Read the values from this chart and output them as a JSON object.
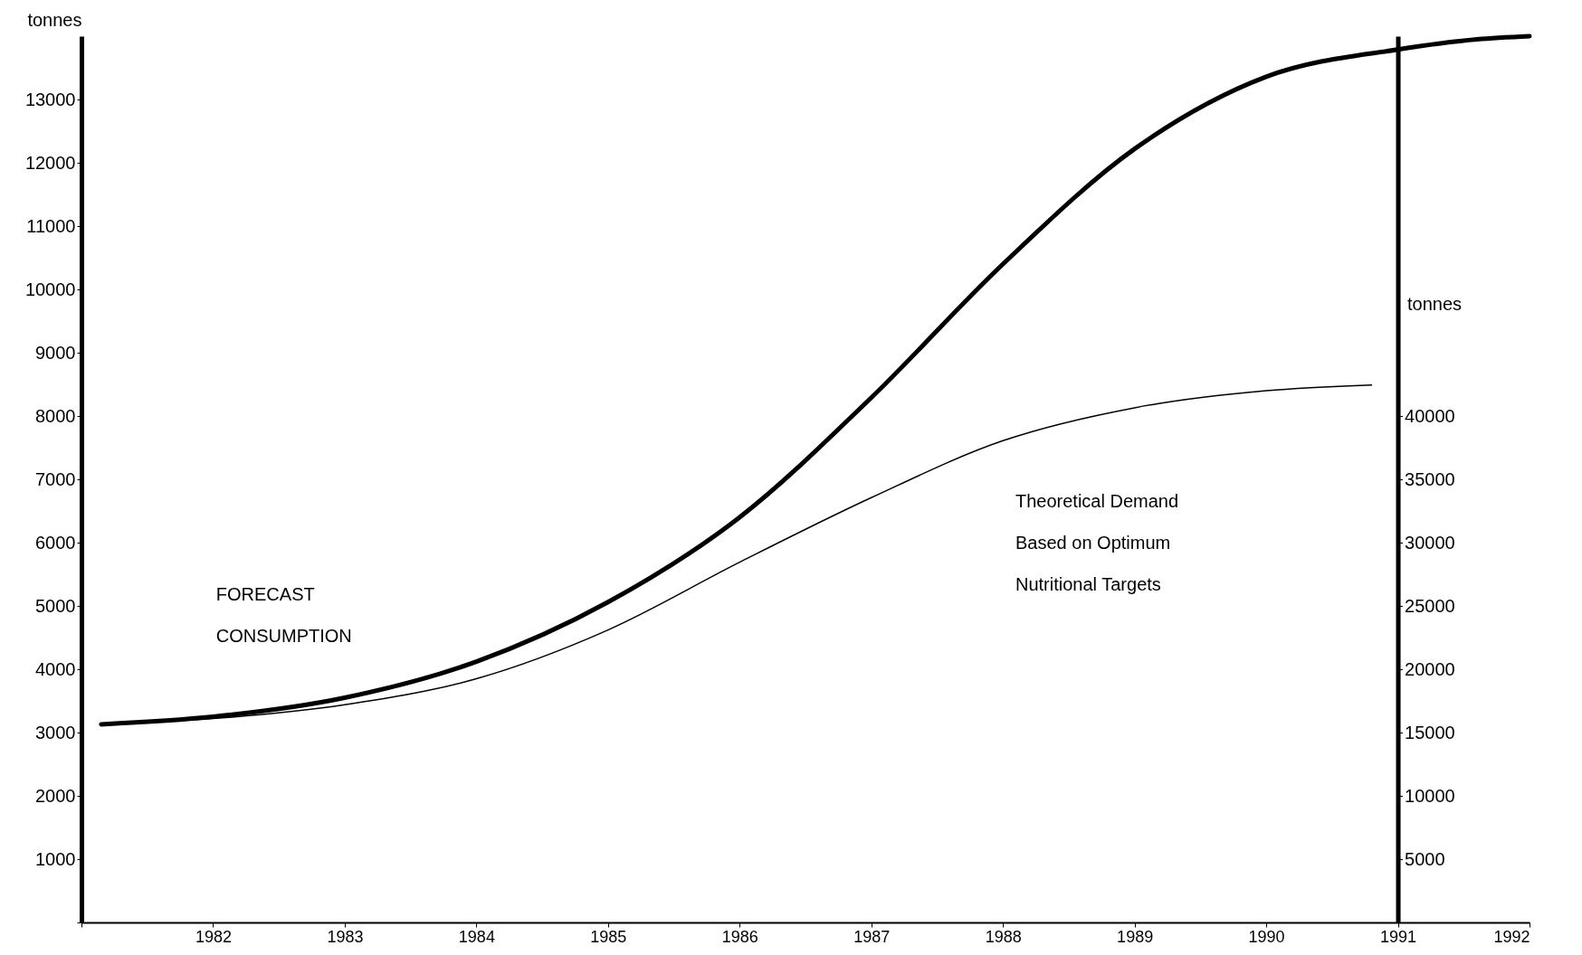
{
  "chart_data": {
    "type": "line",
    "ylabel": "tonnes",
    "y2label": "tonnes",
    "x": [
      1981.15,
      1982,
      1983,
      1984,
      1985,
      1986,
      1987,
      1988,
      1989,
      1990,
      1991,
      1991.6,
      1992
    ],
    "xlim": [
      1981,
      1992
    ],
    "xticks": [
      {
        "value": 1981,
        "label": null
      },
      1982,
      1983,
      1984,
      1985,
      1986,
      1987,
      1988,
      1989,
      1990,
      1991,
      1992
    ],
    "ylim": [
      0,
      14000
    ],
    "yticks": [
      {
        "value": 0,
        "label": null
      },
      1000,
      2000,
      3000,
      4000,
      5000,
      6000,
      7000,
      8000,
      9000,
      10000,
      11000,
      12000,
      13000
    ],
    "y2lim": [
      0,
      70000
    ],
    "y2ticks": [
      {
        "value": 0,
        "label": null
      },
      5000,
      10000,
      15000,
      20000,
      25000,
      30000,
      35000,
      40000
    ],
    "series": [
      {
        "name": "FORECAST\nCONSUMPTION",
        "color": "#000000",
        "values": [
          3130,
          3250,
          3550,
          4120,
          5060,
          6400,
          8290,
          10400,
          12220,
          13360,
          13790,
          13950,
          14000
        ]
      },
      {
        "name": "Theoretical Demand\nBased on Optimum\nNutritional    Targets",
        "color": "#000000",
        "axis": "y2",
        "x": [
          1981.15,
          1982,
          1983,
          1984,
          1985,
          1986,
          1987,
          1988,
          1989,
          1990,
          1990.8
        ],
        "values": [
          15650,
          16100,
          17200,
          19250,
          23100,
          28450,
          33550,
          38050,
          40650,
          42000,
          42450
        ]
      }
    ],
    "grid": false,
    "marker": "none",
    "line_style": "solid"
  }
}
